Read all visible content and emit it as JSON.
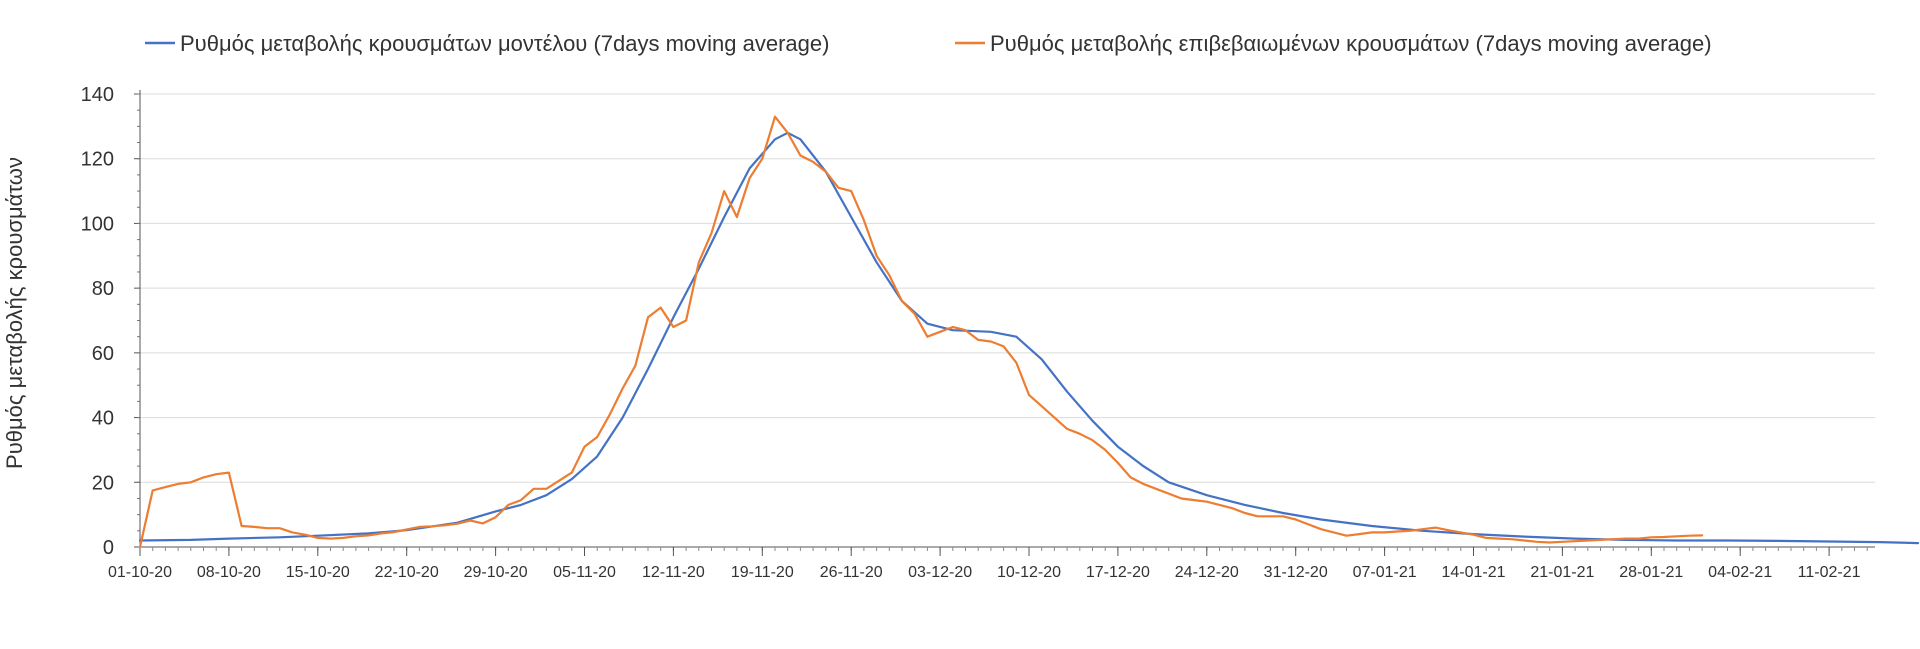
{
  "chart_data": {
    "type": "line",
    "title": "",
    "xlabel": "",
    "ylabel": "Ρυθμός μεταβολής κρουσμάτων",
    "ylim": [
      0,
      140
    ],
    "yticks": [
      0,
      20,
      40,
      60,
      80,
      100,
      120,
      140
    ],
    "grid": true,
    "legend_position": "top",
    "x_start": "2020-10-01",
    "x_tick_labels": [
      "01-10-20",
      "08-10-20",
      "15-10-20",
      "22-10-20",
      "29-10-20",
      "05-11-20",
      "12-11-20",
      "19-11-20",
      "26-11-20",
      "03-12-20",
      "10-12-20",
      "17-12-20",
      "24-12-20",
      "31-12-20",
      "07-01-21",
      "14-01-21",
      "21-01-21",
      "28-01-21",
      "04-02-21",
      "11-02-21"
    ],
    "x_tick_dates": [
      "2020-10-01",
      "2020-10-08",
      "2020-10-15",
      "2020-10-22",
      "2020-10-29",
      "2020-11-05",
      "2020-11-12",
      "2020-11-19",
      "2020-11-26",
      "2020-12-03",
      "2020-12-10",
      "2020-12-17",
      "2020-12-24",
      "2020-12-31",
      "2021-01-07",
      "2021-01-14",
      "2021-01-21",
      "2021-01-28",
      "2021-02-04",
      "2021-02-11"
    ],
    "series": [
      {
        "name": "Ρυθμός μεταβολής κρουσμάτων μοντέλου (7days moving average)",
        "color": "#4472c4",
        "points": [
          [
            "2020-10-01",
            2
          ],
          [
            "2020-10-05",
            2.2
          ],
          [
            "2020-10-08",
            2.6
          ],
          [
            "2020-10-12",
            3
          ],
          [
            "2020-10-15",
            3.5
          ],
          [
            "2020-10-19",
            4.2
          ],
          [
            "2020-10-22",
            5.2
          ],
          [
            "2020-10-26",
            7.5
          ],
          [
            "2020-10-29",
            11
          ],
          [
            "2020-10-31",
            13
          ],
          [
            "2020-11-02",
            16
          ],
          [
            "2020-11-04",
            21
          ],
          [
            "2020-11-06",
            28
          ],
          [
            "2020-11-08",
            40
          ],
          [
            "2020-11-10",
            55
          ],
          [
            "2020-11-12",
            71
          ],
          [
            "2020-11-14",
            86
          ],
          [
            "2020-11-16",
            102
          ],
          [
            "2020-11-18",
            117
          ],
          [
            "2020-11-20",
            126
          ],
          [
            "2020-11-21",
            128
          ],
          [
            "2020-11-22",
            126
          ],
          [
            "2020-11-24",
            116
          ],
          [
            "2020-11-26",
            102
          ],
          [
            "2020-11-28",
            88
          ],
          [
            "2020-11-30",
            76
          ],
          [
            "2020-12-02",
            69
          ],
          [
            "2020-12-04",
            67
          ],
          [
            "2020-12-07",
            66.5
          ],
          [
            "2020-12-09",
            65
          ],
          [
            "2020-12-11",
            58
          ],
          [
            "2020-12-13",
            48
          ],
          [
            "2020-12-15",
            39
          ],
          [
            "2020-12-17",
            31
          ],
          [
            "2020-12-19",
            25
          ],
          [
            "2020-12-21",
            20
          ],
          [
            "2020-12-24",
            16
          ],
          [
            "2020-12-27",
            13
          ],
          [
            "2020-12-30",
            10.5
          ],
          [
            "2021-01-02",
            8.5
          ],
          [
            "2021-01-06",
            6.5
          ],
          [
            "2021-01-10",
            5
          ],
          [
            "2021-01-14",
            4
          ],
          [
            "2021-01-18",
            3.2
          ],
          [
            "2021-01-22",
            2.6
          ],
          [
            "2021-01-26",
            2.2
          ],
          [
            "2021-01-30",
            2
          ],
          [
            "2021-02-03",
            2
          ],
          [
            "2021-02-07",
            1.9
          ],
          [
            "2021-02-11",
            1.7
          ],
          [
            "2021-02-15",
            1.5
          ],
          [
            "2021-02-18",
            1.2
          ]
        ]
      },
      {
        "name": "Ρυθμός μεταβολής επιβεβαιωμένων κρουσμάτων (7days moving average)",
        "color": "#ed7d31",
        "points": [
          [
            "2020-10-01",
            0
          ],
          [
            "2020-10-02",
            17.5
          ],
          [
            "2020-10-03",
            18.5
          ],
          [
            "2020-10-04",
            19.5
          ],
          [
            "2020-10-05",
            20
          ],
          [
            "2020-10-06",
            21.5
          ],
          [
            "2020-10-07",
            22.5
          ],
          [
            "2020-10-08",
            23
          ],
          [
            "2020-10-09",
            6.5
          ],
          [
            "2020-10-10",
            6.2
          ],
          [
            "2020-10-11",
            5.8
          ],
          [
            "2020-10-12",
            5.8
          ],
          [
            "2020-10-13",
            4.5
          ],
          [
            "2020-10-14",
            3.8
          ],
          [
            "2020-10-15",
            2.8
          ],
          [
            "2020-10-16",
            2.6
          ],
          [
            "2020-10-17",
            2.8
          ],
          [
            "2020-10-18",
            3.3
          ],
          [
            "2020-10-19",
            3.6
          ],
          [
            "2020-10-20",
            4.2
          ],
          [
            "2020-10-21",
            4.6
          ],
          [
            "2020-10-22",
            5.4
          ],
          [
            "2020-10-23",
            6.2
          ],
          [
            "2020-10-24",
            6.4
          ],
          [
            "2020-10-25",
            6.7
          ],
          [
            "2020-10-26",
            7.2
          ],
          [
            "2020-10-27",
            8.2
          ],
          [
            "2020-10-28",
            7.3
          ],
          [
            "2020-10-29",
            9.2
          ],
          [
            "2020-10-30",
            13
          ],
          [
            "2020-10-31",
            14.5
          ],
          [
            "2020-11-01",
            18
          ],
          [
            "2020-11-02",
            18
          ],
          [
            "2020-11-03",
            20.5
          ],
          [
            "2020-11-04",
            23
          ],
          [
            "2020-11-05",
            31
          ],
          [
            "2020-11-06",
            34
          ],
          [
            "2020-11-07",
            41
          ],
          [
            "2020-11-08",
            49
          ],
          [
            "2020-11-09",
            56
          ],
          [
            "2020-11-10",
            71
          ],
          [
            "2020-11-11",
            74
          ],
          [
            "2020-11-12",
            68
          ],
          [
            "2020-11-13",
            70
          ],
          [
            "2020-11-14",
            88
          ],
          [
            "2020-11-15",
            97
          ],
          [
            "2020-11-16",
            110
          ],
          [
            "2020-11-17",
            102
          ],
          [
            "2020-11-18",
            114
          ],
          [
            "2020-11-19",
            120
          ],
          [
            "2020-11-20",
            133
          ],
          [
            "2020-11-21",
            128
          ],
          [
            "2020-11-22",
            121
          ],
          [
            "2020-11-23",
            119
          ],
          [
            "2020-11-24",
            116
          ],
          [
            "2020-11-25",
            111
          ],
          [
            "2020-11-26",
            110
          ],
          [
            "2020-11-27",
            101
          ],
          [
            "2020-11-28",
            90
          ],
          [
            "2020-11-29",
            84
          ],
          [
            "2020-11-30",
            76
          ],
          [
            "2020-12-01",
            72
          ],
          [
            "2020-12-02",
            65
          ],
          [
            "2020-12-03",
            66.5
          ],
          [
            "2020-12-04",
            68
          ],
          [
            "2020-12-05",
            67
          ],
          [
            "2020-12-06",
            64
          ],
          [
            "2020-12-07",
            63.5
          ],
          [
            "2020-12-08",
            62
          ],
          [
            "2020-12-09",
            57
          ],
          [
            "2020-12-10",
            47
          ],
          [
            "2020-12-11",
            43.5
          ],
          [
            "2020-12-12",
            40
          ],
          [
            "2020-12-13",
            36.5
          ],
          [
            "2020-12-14",
            35
          ],
          [
            "2020-12-15",
            33
          ],
          [
            "2020-12-16",
            30
          ],
          [
            "2020-12-17",
            26
          ],
          [
            "2020-12-18",
            21.5
          ],
          [
            "2020-12-19",
            19.5
          ],
          [
            "2020-12-20",
            18
          ],
          [
            "2020-12-21",
            16.5
          ],
          [
            "2020-12-22",
            15
          ],
          [
            "2020-12-23",
            14.5
          ],
          [
            "2020-12-24",
            14
          ],
          [
            "2020-12-25",
            13
          ],
          [
            "2020-12-26",
            12
          ],
          [
            "2020-12-27",
            10.5
          ],
          [
            "2020-12-28",
            9.5
          ],
          [
            "2020-12-29",
            9.5
          ],
          [
            "2020-12-30",
            9.5
          ],
          [
            "2020-12-31",
            8.5
          ],
          [
            "2021-01-01",
            7
          ],
          [
            "2021-01-02",
            5.5
          ],
          [
            "2021-01-03",
            4.5
          ],
          [
            "2021-01-04",
            3.5
          ],
          [
            "2021-01-05",
            4
          ],
          [
            "2021-01-06",
            4.5
          ],
          [
            "2021-01-07",
            4.5
          ],
          [
            "2021-01-08",
            4.8
          ],
          [
            "2021-01-09",
            5
          ],
          [
            "2021-01-10",
            5.5
          ],
          [
            "2021-01-11",
            6
          ],
          [
            "2021-01-12",
            5.2
          ],
          [
            "2021-01-13",
            4.5
          ],
          [
            "2021-01-14",
            3.8
          ],
          [
            "2021-01-15",
            2.8
          ],
          [
            "2021-01-16",
            2.6
          ],
          [
            "2021-01-17",
            2.4
          ],
          [
            "2021-01-18",
            2
          ],
          [
            "2021-01-19",
            1.6
          ],
          [
            "2021-01-20",
            1.4
          ],
          [
            "2021-01-21",
            1.6
          ],
          [
            "2021-01-22",
            1.8
          ],
          [
            "2021-01-23",
            2
          ],
          [
            "2021-01-24",
            2.2
          ],
          [
            "2021-01-25",
            2.4
          ],
          [
            "2021-01-26",
            2.6
          ],
          [
            "2021-01-27",
            2.6
          ],
          [
            "2021-01-28",
            3
          ],
          [
            "2021-01-29",
            3.1
          ],
          [
            "2021-01-30",
            3.3
          ],
          [
            "2021-01-31",
            3.5
          ],
          [
            "2021-02-01",
            3.6
          ]
        ]
      }
    ]
  }
}
